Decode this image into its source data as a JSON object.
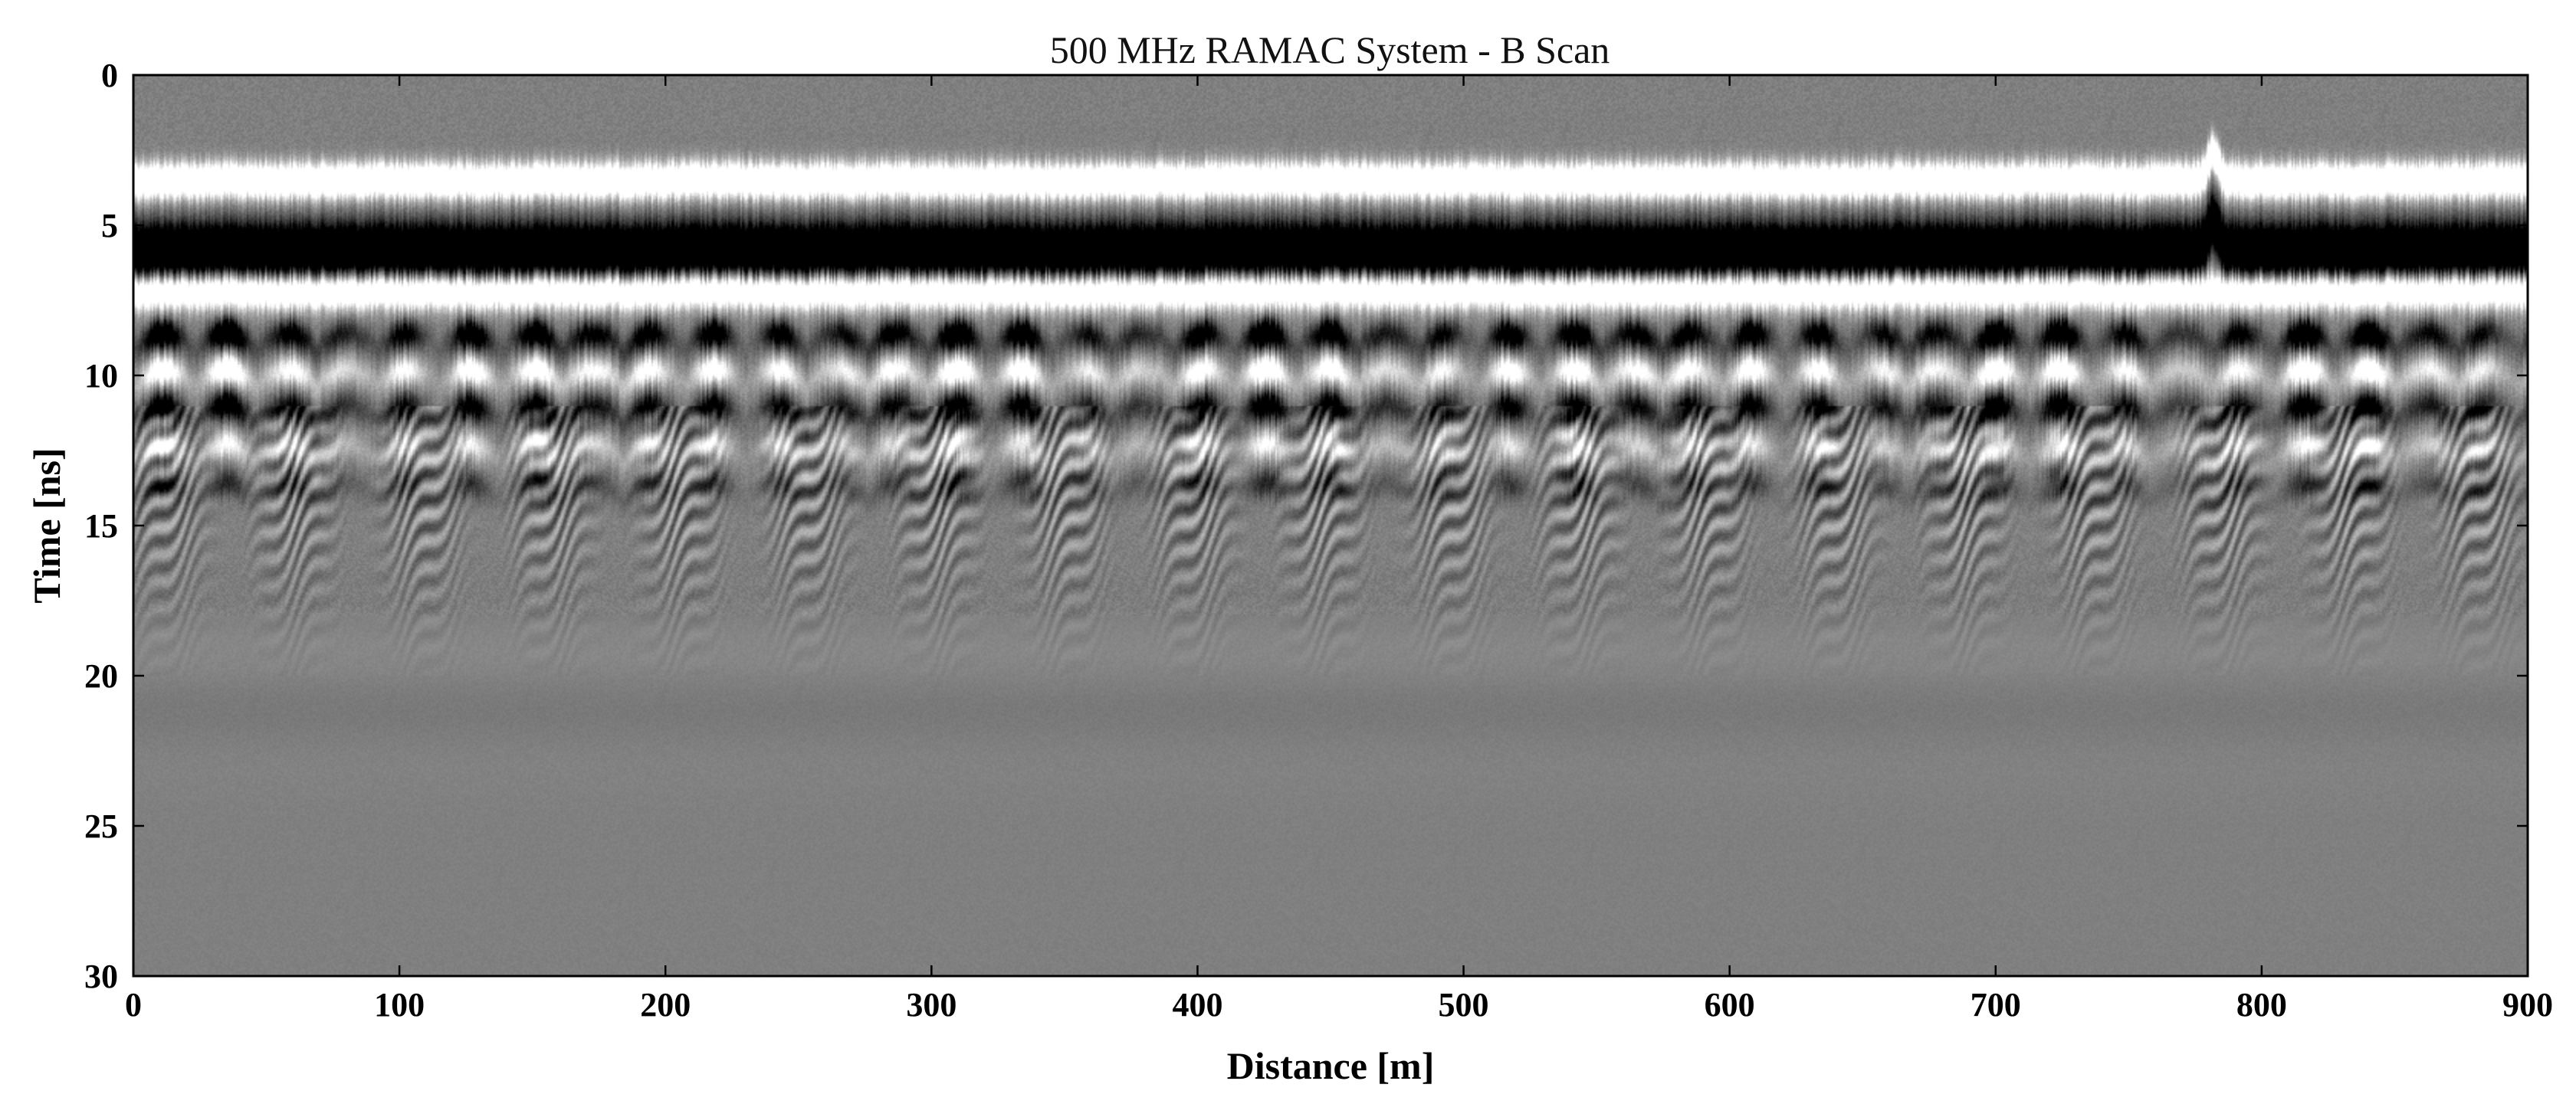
{
  "chart_data": {
    "type": "heatmap",
    "title": "500 MHz RAMAC System - B Scan",
    "xlabel": "Distance [m]",
    "ylabel": "Time [ns]",
    "xlim": [
      0,
      900
    ],
    "ylim": [
      0,
      30
    ],
    "y_axis_inverted": true,
    "x_ticks": [
      "0",
      "100",
      "200",
      "300",
      "400",
      "500",
      "600",
      "700",
      "800",
      "900"
    ],
    "y_ticks": [
      "0",
      "5",
      "10",
      "15",
      "20",
      "25",
      "30"
    ],
    "colormap": "grayscale",
    "colors": {
      "background": "#808080",
      "positive_max": "#ffffff",
      "negative_max": "#000000"
    },
    "grid": false,
    "legend": "none",
    "reflection_bands": [
      {
        "time_ns": 3.5,
        "polarity": "positive",
        "amplitude": 0.95,
        "continuity": "continuous"
      },
      {
        "time_ns": 5.8,
        "polarity": "negative",
        "amplitude": 1.0,
        "continuity": "continuous"
      },
      {
        "time_ns": 7.2,
        "polarity": "positive",
        "amplitude": 0.85,
        "continuity": "continuous"
      },
      {
        "time_ns": 8.6,
        "polarity": "negative",
        "amplitude": 0.8,
        "continuity": "hyperbolic"
      },
      {
        "time_ns": 9.8,
        "polarity": "positive",
        "amplitude": 0.75,
        "continuity": "hyperbolic"
      },
      {
        "time_ns": 11.0,
        "polarity": "negative",
        "amplitude": 0.65,
        "continuity": "hyperbolic"
      },
      {
        "time_ns": 12.3,
        "polarity": "positive",
        "amplitude": 0.45,
        "continuity": "hyperbolic"
      },
      {
        "time_ns": 13.6,
        "polarity": "negative",
        "amplitude": 0.3,
        "continuity": "hyperbolic"
      }
    ],
    "features": [
      {
        "distance_m": 782,
        "time_ns": 4.5,
        "description": "local reflector disturbance"
      }
    ],
    "hyperbola_spacing_m": 23
  }
}
